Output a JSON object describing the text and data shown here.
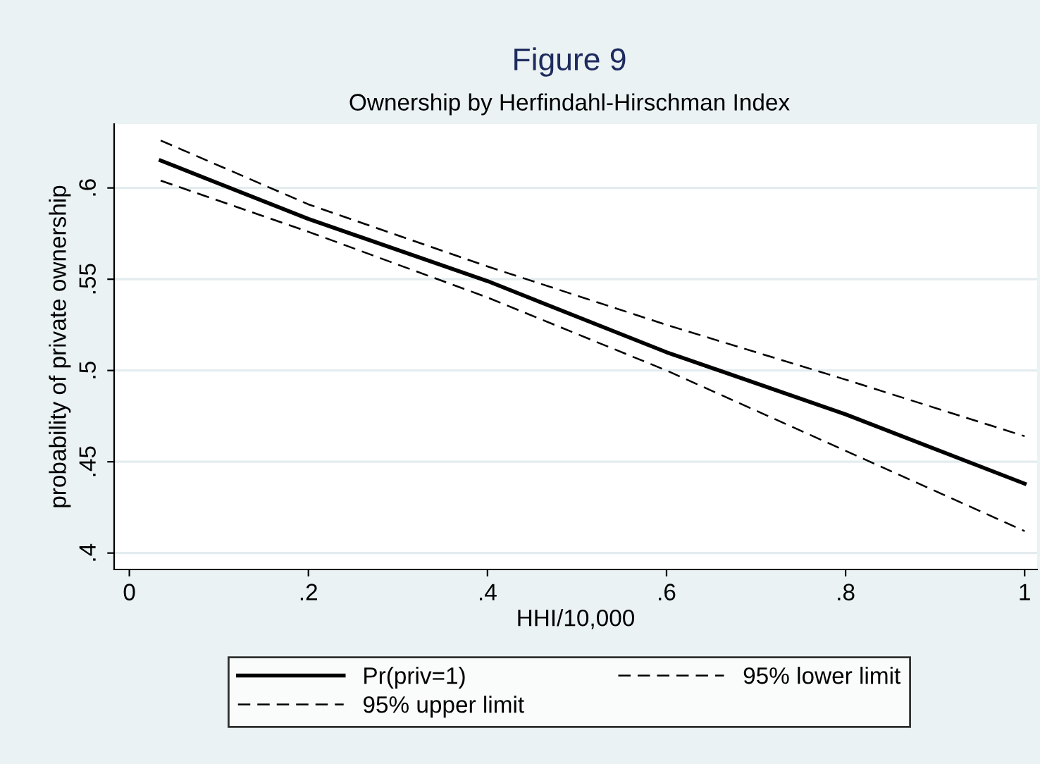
{
  "chart_data": {
    "type": "line",
    "title": "Figure 9",
    "subtitle": "Ownership by Herfindahl-Hirschman Index",
    "xlabel": "HHI/10,000",
    "ylabel": "probability of private ownership",
    "x": [
      0.035,
      0.2,
      0.4,
      0.6,
      0.8,
      1
    ],
    "series": [
      {
        "name": "Pr(priv=1)",
        "color": "#000000",
        "line_style": "solid",
        "values": [
          0.615,
          0.583,
          0.549,
          0.51,
          0.476,
          0.438
        ]
      },
      {
        "name": "95% upper limit",
        "color": "#000000",
        "line_style": "dashed",
        "values": [
          0.626,
          0.591,
          0.557,
          0.525,
          0.495,
          0.464
        ]
      },
      {
        "name": "95% lower limit",
        "color": "#000000",
        "line_style": "dashed",
        "values": [
          0.604,
          0.576,
          0.54,
          0.5,
          0.456,
          0.412
        ]
      }
    ],
    "xlim": [
      -0.017,
      1.014
    ],
    "ylim": [
      0.391,
      0.635
    ],
    "xticks": [
      0,
      {
        "value": 0.2,
        "label": ".2"
      },
      {
        "value": 0.4,
        "label": ".4"
      },
      {
        "value": 0.6,
        "label": ".6"
      },
      {
        "value": 0.8,
        "label": ".8"
      },
      1
    ],
    "yticks": [
      {
        "value": 0.4,
        "label": ".4"
      },
      {
        "value": 0.45,
        "label": ".45"
      },
      {
        "value": 0.5,
        "label": ".5"
      },
      {
        "value": 0.55,
        "label": ".55"
      },
      {
        "value": 0.6,
        "label": ".6"
      }
    ],
    "grid": "y",
    "legend": "bottom",
    "marker": "none"
  }
}
